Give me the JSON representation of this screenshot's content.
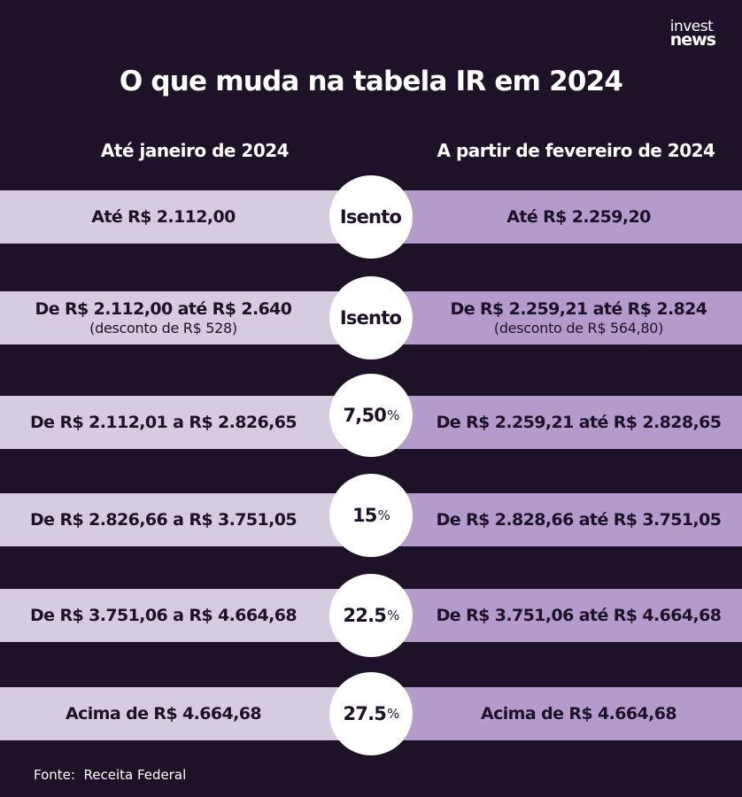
{
  "brand": {
    "logo_line1": "invest",
    "logo_line2": "news"
  },
  "title": "O que muda na tabela IR em 2024",
  "headers": {
    "left": "Até janeiro de 2024",
    "right": "A partir de fevereiro de 2024"
  },
  "rows": [
    {
      "left_main": "Até R$ 2.112,00",
      "left_sub": "",
      "rate": "Isento",
      "rate_unit": "",
      "right_main": "Até R$ 2.259,20",
      "right_sub": ""
    },
    {
      "left_main": "De R$ 2.112,00 até R$ 2.640",
      "left_sub": "(desconto de R$ 528)",
      "rate": "Isento",
      "rate_unit": "",
      "right_main": "De R$ 2.259,21 até R$ 2.824",
      "right_sub": "(desconto de R$ 564,80)"
    },
    {
      "left_main": "De R$ 2.112,01 a R$ 2.826,65",
      "left_sub": "",
      "rate": "7,50",
      "rate_unit": "%",
      "right_main": "De R$ 2.259,21 até R$ 2.828,65",
      "right_sub": ""
    },
    {
      "left_main": "De R$ 2.826,66 a R$ 3.751,05",
      "left_sub": "",
      "rate": "15",
      "rate_unit": "%",
      "right_main": "De R$ 2.828,66 até R$ 3.751,05",
      "right_sub": ""
    },
    {
      "left_main": "De R$ 3.751,06 a R$ 4.664,68",
      "left_sub": "",
      "rate": "22.5",
      "rate_unit": "%",
      "right_main": "De R$ 3.751,06 até R$ 4.664,68",
      "right_sub": ""
    },
    {
      "left_main": "Acima de R$ 4.664,68",
      "left_sub": "",
      "rate": "27.5",
      "rate_unit": "%",
      "right_main": "Acima de R$ 4.664,68",
      "right_sub": ""
    }
  ],
  "source": {
    "label": "Fonte:",
    "value": "Receita Federal"
  },
  "colors": {
    "background": "#1e1229",
    "left_band": "#d6ccdf",
    "right_band": "#b49bcb",
    "circle": "#ffffff",
    "text_dark": "#1e1229"
  }
}
